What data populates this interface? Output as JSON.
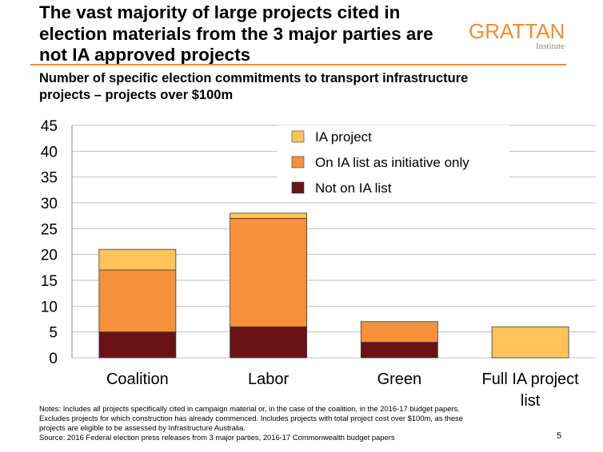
{
  "header": {
    "title_lines": [
      "The vast majority of large projects cited in",
      "election materials from the 3 major parties are",
      "not IA approved projects"
    ],
    "logo_word": "GRATTAN",
    "logo_sub": "Institute",
    "subtitle_lines": [
      "Number of specific election commitments to transport infrastructure",
      "projects – projects over $100m"
    ]
  },
  "colors": {
    "accent": "#F28C28",
    "ia_project": "#FFC35A",
    "initiative_only": "#F7903A",
    "not_on_list": "#6B1216",
    "gridline": "#BFBFBF"
  },
  "chart_data": {
    "type": "bar",
    "stacked": true,
    "categories": [
      "Coalition",
      "Labor",
      "Green",
      "Full IA project list"
    ],
    "category_label_lines": [
      [
        "Coalition"
      ],
      [
        "Labor"
      ],
      [
        "Green"
      ],
      [
        "Full IA project",
        "list"
      ]
    ],
    "series": [
      {
        "name": "Not on IA list",
        "values": [
          5,
          6,
          3,
          0
        ],
        "color": "#6B1216"
      },
      {
        "name": "On IA list as initiative only",
        "values": [
          12,
          21,
          4,
          0
        ],
        "color": "#F7903A"
      },
      {
        "name": "IA project",
        "values": [
          4,
          1,
          0,
          6
        ],
        "color": "#FFC35A"
      }
    ],
    "legend_order": [
      "IA project",
      "On IA list as initiative only",
      "Not on IA list"
    ],
    "legend_position": "top-right",
    "ylim": [
      0,
      45
    ],
    "yticks": [
      0,
      5,
      10,
      15,
      20,
      25,
      30,
      35,
      40,
      45
    ],
    "grid": true,
    "title": "Number of specific election commitments to transport infrastructure projects – projects over $100m"
  },
  "notes": [
    "Notes: Includes all projects specifically cited in campaign material or, in the case of the coalition, in the 2016-17  budget papers.",
    "Excludes projects for which construction has already commenced. Includes projects with total project cost over  $100m, as these",
    "projects are eligible to be assessed by Infrastructure  Australia.",
    "Source: 2016 Federal election press releases from 3 major parties, 2016-17 Commonwealth  budget papers"
  ],
  "page_number": "5"
}
